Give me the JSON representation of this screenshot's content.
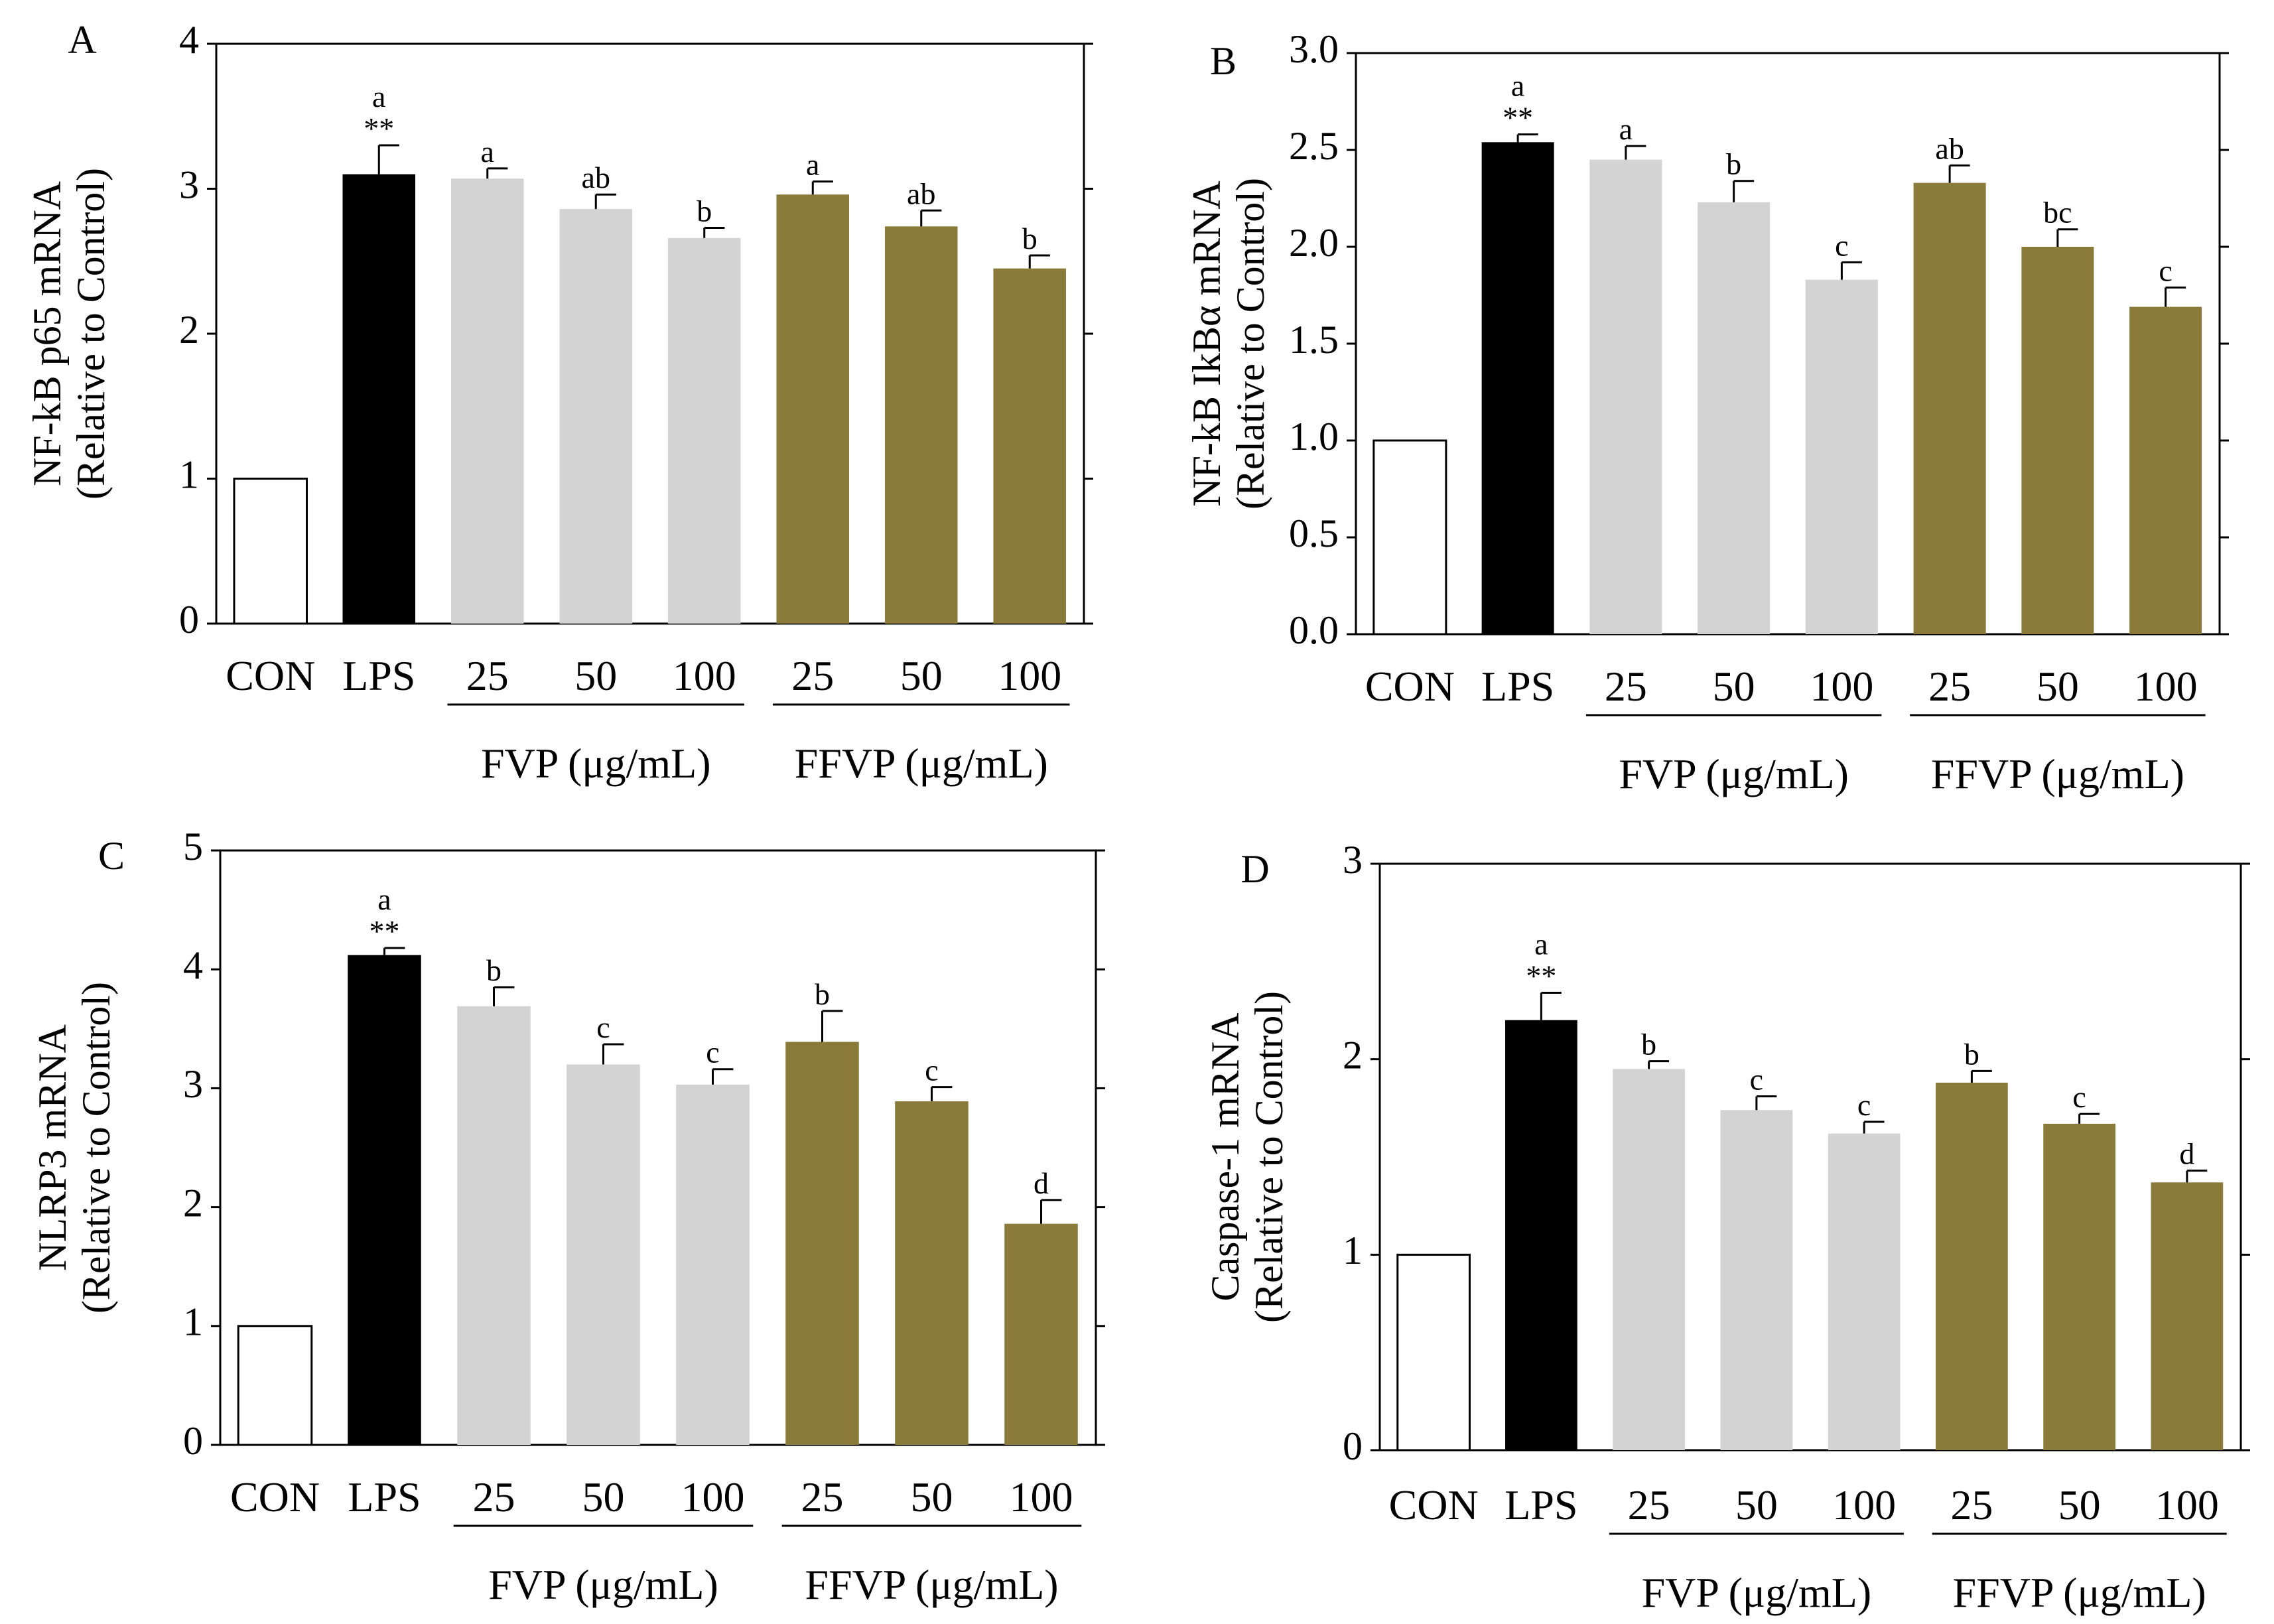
{
  "colors": {
    "CON": "#ffffff",
    "LPS": "#000000",
    "FVP": "#d3d3d3",
    "FFVP": "#8b7b3a"
  },
  "chart_data": [
    {
      "type": "bar",
      "panel": "A",
      "ylabel_line1": "NF-kB p65 mRNA",
      "ylabel_line2": "(Relative to Control)",
      "ylim": [
        0,
        4
      ],
      "yticks": [
        "0",
        "1",
        "2",
        "3",
        "4"
      ],
      "categories": [
        "CON",
        "LPS",
        "25",
        "50",
        "100",
        "25",
        "50",
        "100"
      ],
      "groups": [
        "CON",
        "LPS",
        "FVP",
        "FVP",
        "FVP",
        "FFVP",
        "FFVP",
        "FFVP"
      ],
      "group_labels": [
        "FVP (μg/mL)",
        "FFVP (μg/mL)"
      ],
      "values": [
        1.0,
        3.1,
        3.07,
        2.86,
        2.66,
        2.96,
        2.74,
        2.45
      ],
      "errors": [
        0,
        0.2,
        0.07,
        0.1,
        0.07,
        0.09,
        0.11,
        0.09
      ],
      "letters": [
        "",
        "a",
        "a",
        "ab",
        "b",
        "a",
        "ab",
        "b"
      ],
      "stars": [
        "",
        "**",
        "",
        "",
        "",
        "",
        "",
        ""
      ]
    },
    {
      "type": "bar",
      "panel": "B",
      "ylabel_line1": "NF-kB IkBα mRNA",
      "ylabel_line2": "(Relative to Control)",
      "ylim": [
        0,
        3
      ],
      "yticks": [
        "0.0",
        "0.5",
        "1.0",
        "1.5",
        "2.0",
        "2.5",
        "3.0"
      ],
      "categories": [
        "CON",
        "LPS",
        "25",
        "50",
        "100",
        "25",
        "50",
        "100"
      ],
      "groups": [
        "CON",
        "LPS",
        "FVP",
        "FVP",
        "FVP",
        "FFVP",
        "FFVP",
        "FFVP"
      ],
      "group_labels": [
        "FVP (μg/mL)",
        "FFVP (μg/mL)"
      ],
      "values": [
        1.0,
        2.54,
        2.45,
        2.23,
        1.83,
        2.33,
        2.0,
        1.69
      ],
      "errors": [
        0,
        0.04,
        0.07,
        0.11,
        0.09,
        0.09,
        0.09,
        0.1
      ],
      "letters": [
        "",
        "a",
        "a",
        "b",
        "c",
        "ab",
        "bc",
        "c"
      ],
      "stars": [
        "",
        "**",
        "",
        "",
        "",
        "",
        "",
        ""
      ]
    },
    {
      "type": "bar",
      "panel": "C",
      "ylabel_line1": "NLRP3 mRNA",
      "ylabel_line2": "(Relative to Control)",
      "ylim": [
        0,
        5
      ],
      "yticks": [
        "0",
        "1",
        "2",
        "3",
        "4",
        "5"
      ],
      "categories": [
        "CON",
        "LPS",
        "25",
        "50",
        "100",
        "25",
        "50",
        "100"
      ],
      "groups": [
        "CON",
        "LPS",
        "FVP",
        "FVP",
        "FVP",
        "FFVP",
        "FFVP",
        "FFVP"
      ],
      "group_labels": [
        "FVP (μg/mL)",
        "FFVP (μg/mL)"
      ],
      "values": [
        1.0,
        4.12,
        3.69,
        3.2,
        3.03,
        3.39,
        2.89,
        1.86
      ],
      "errors": [
        0,
        0.06,
        0.16,
        0.17,
        0.13,
        0.26,
        0.12,
        0.2
      ],
      "letters": [
        "",
        "a",
        "b",
        "c",
        "c",
        "b",
        "c",
        "d"
      ],
      "stars": [
        "",
        "**",
        "",
        "",
        "",
        "",
        "",
        ""
      ]
    },
    {
      "type": "bar",
      "panel": "D",
      "ylabel_line1": "Caspase-1 mRNA",
      "ylabel_line2": "(Relative to Control)",
      "ylim": [
        0,
        3
      ],
      "yticks": [
        "0",
        "1",
        "2",
        "3"
      ],
      "categories": [
        "CON",
        "LPS",
        "25",
        "50",
        "100",
        "25",
        "50",
        "100"
      ],
      "groups": [
        "CON",
        "LPS",
        "FVP",
        "FVP",
        "FVP",
        "FFVP",
        "FFVP",
        "FFVP"
      ],
      "group_labels": [
        "FVP (μg/mL)",
        "FFVP (μg/mL)"
      ],
      "values": [
        1.0,
        2.2,
        1.95,
        1.74,
        1.62,
        1.88,
        1.67,
        1.37
      ],
      "errors": [
        0,
        0.14,
        0.04,
        0.07,
        0.06,
        0.06,
        0.05,
        0.06
      ],
      "letters": [
        "",
        "a",
        "b",
        "c",
        "c",
        "b",
        "c",
        "d"
      ],
      "stars": [
        "",
        "**",
        "",
        "",
        "",
        "",
        "",
        ""
      ]
    }
  ]
}
